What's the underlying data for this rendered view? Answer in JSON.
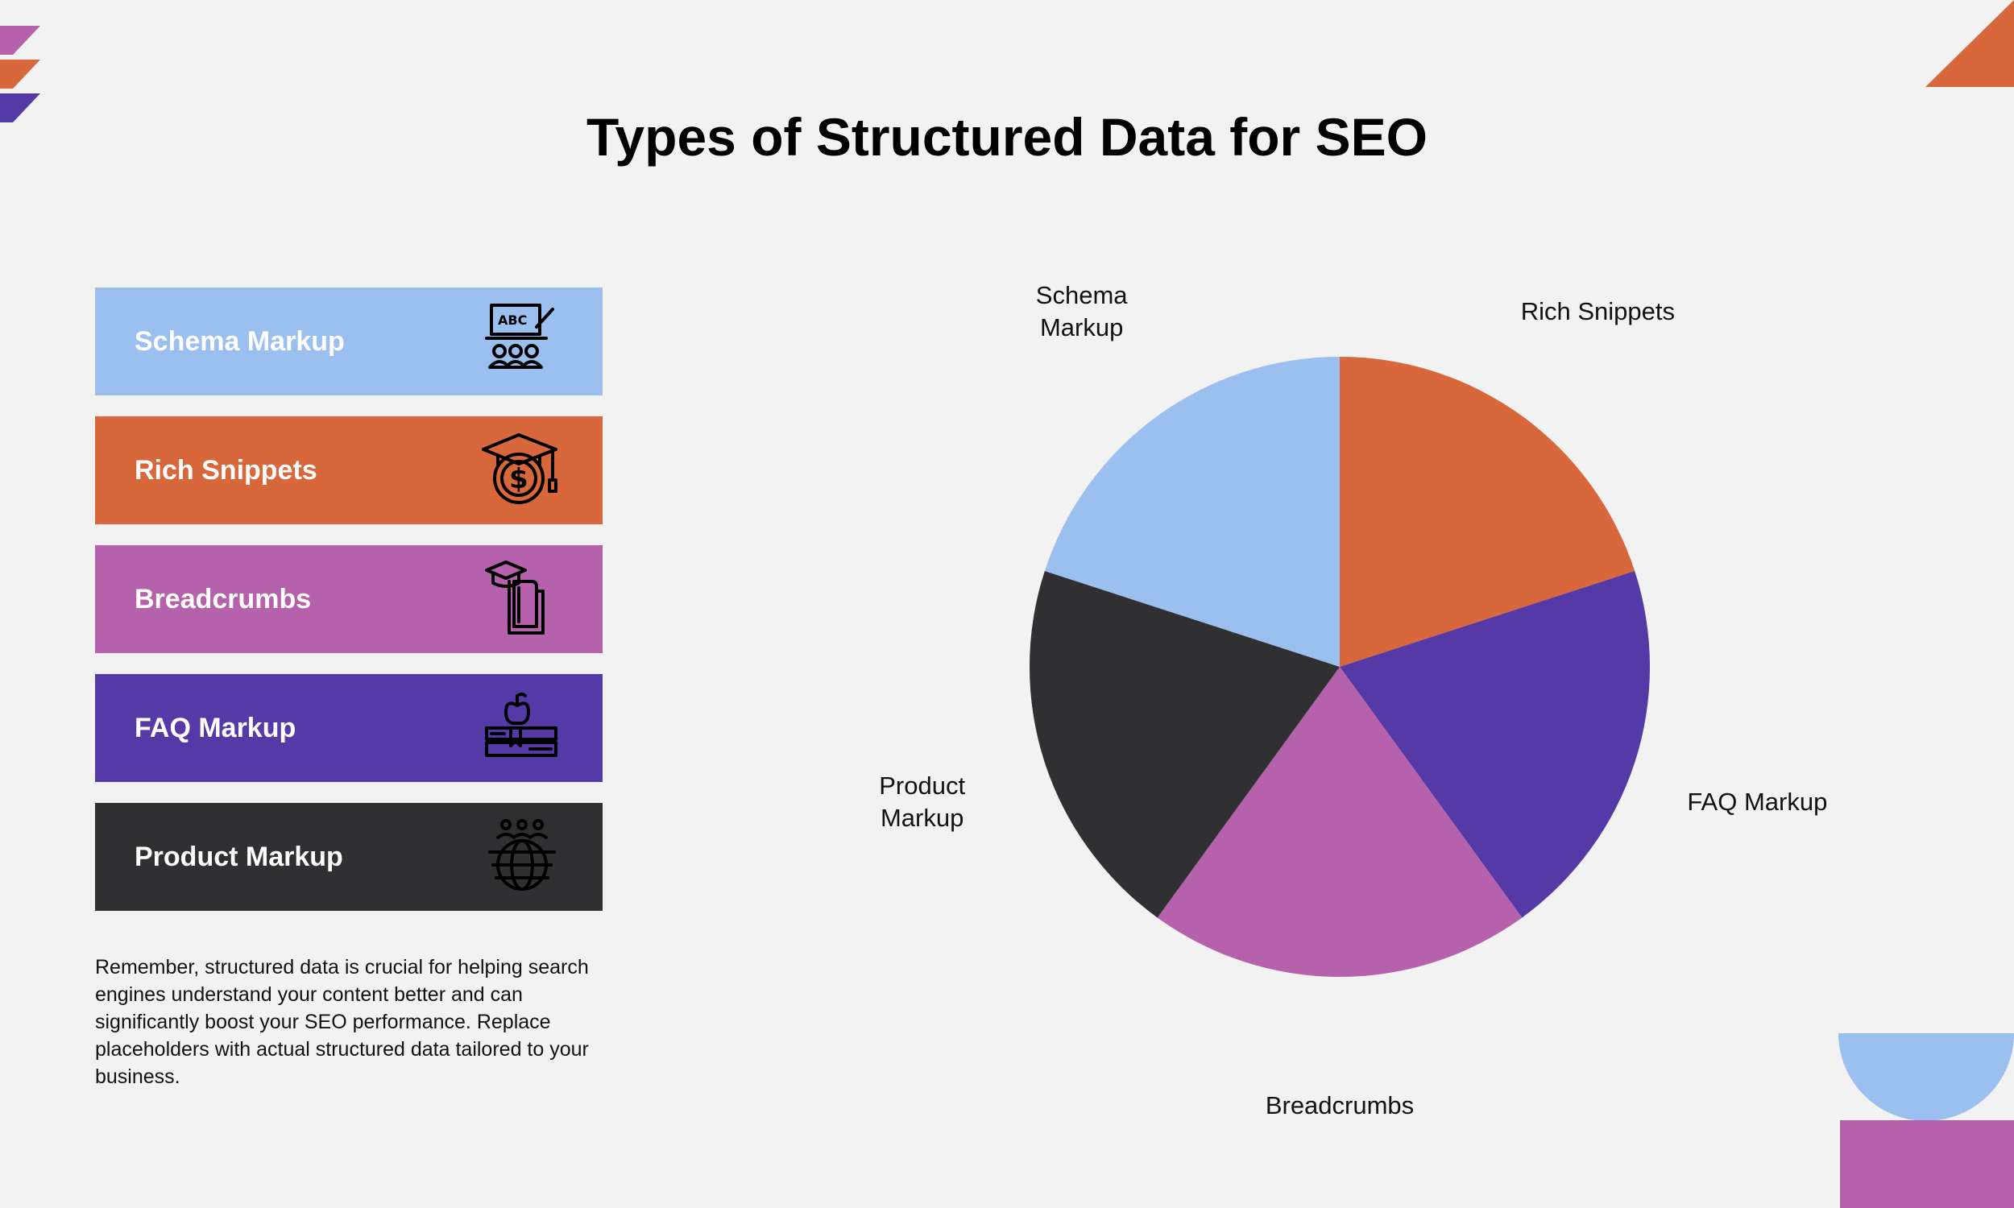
{
  "title": "Types of Structured Data for SEO",
  "chart_data": {
    "type": "pie",
    "title": "",
    "categories": [
      "Rich Snippets",
      "FAQ Markup",
      "Breadcrumbs",
      "Product Markup",
      "Schema Markup"
    ],
    "values": [
      20,
      20,
      20,
      20,
      20
    ],
    "colors": [
      "#d8673b",
      "#553aa7",
      "#b661ab",
      "#303033",
      "#9bc0f0"
    ],
    "slice_labels": [
      "Rich Snippets",
      "FAQ Markup",
      "Breadcrumbs",
      "Product\nMarkup",
      "Schema\nMarkup"
    ],
    "start": "top, clockwise",
    "legend": "left"
  },
  "legend_items": [
    {
      "label": "Schema Markup",
      "color": "#9bc0f0",
      "icon": "presentation-abc-icon"
    },
    {
      "label": "Rich Snippets",
      "color": "#d8673b",
      "icon": "graduation-cap-dollar-icon"
    },
    {
      "label": "Breadcrumbs",
      "color": "#b661ab",
      "icon": "graduation-book-icon"
    },
    {
      "label": "FAQ Markup",
      "color": "#553aa7",
      "icon": "books-apple-icon"
    },
    {
      "label": "Product Markup",
      "color": "#303033",
      "icon": "global-people-icon"
    }
  ],
  "note": "Remember, structured data is crucial for helping search engines understand your content better and can significantly boost your SEO performance. Replace placeholders with actual structured data tailored to your business."
}
